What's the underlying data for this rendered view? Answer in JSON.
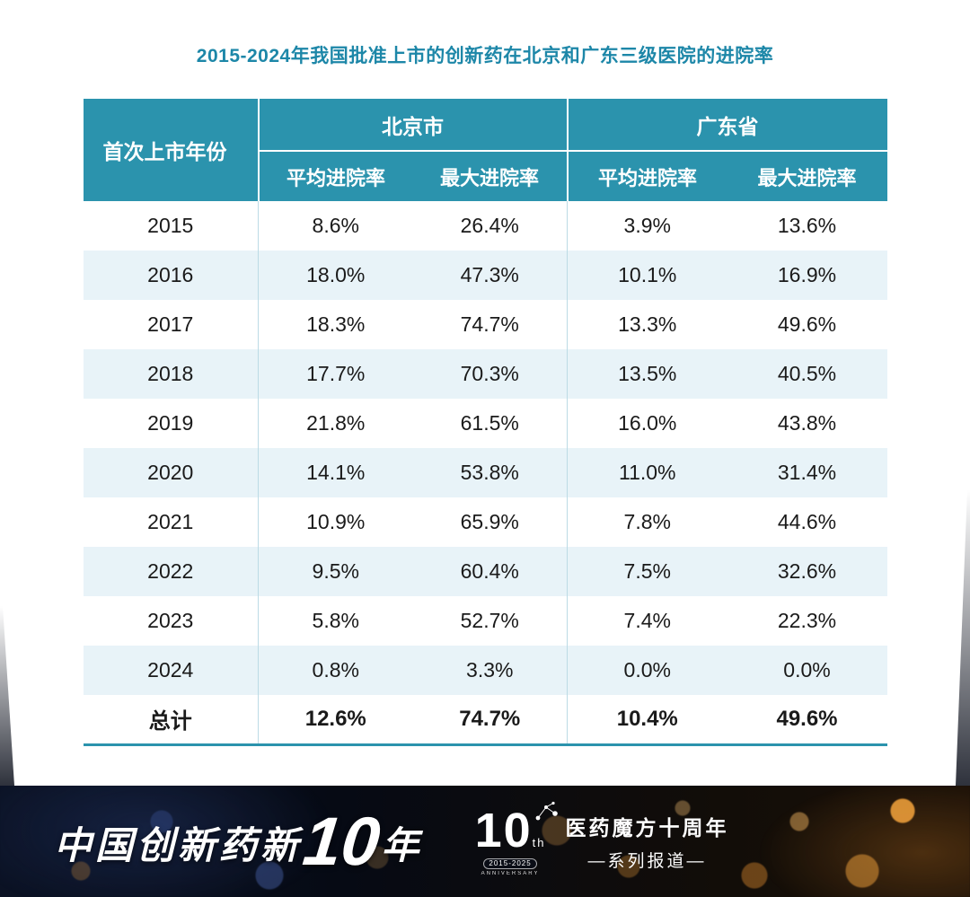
{
  "chart_data": {
    "type": "table",
    "title": "2015-2024年我国批准上市的创新药在北京和广东三级医院的进院率",
    "column_groups": [
      {
        "label": "",
        "columns": [
          "首次上市年份"
        ]
      },
      {
        "label": "北京市",
        "columns": [
          "平均进院率",
          "最大进院率"
        ]
      },
      {
        "label": "广东省",
        "columns": [
          "平均进院率",
          "最大进院率"
        ]
      }
    ],
    "rows": [
      [
        "2015",
        "8.6%",
        "26.4%",
        "3.9%",
        "13.6%"
      ],
      [
        "2016",
        "18.0%",
        "47.3%",
        "10.1%",
        "16.9%"
      ],
      [
        "2017",
        "18.3%",
        "74.7%",
        "13.3%",
        "49.6%"
      ],
      [
        "2018",
        "17.7%",
        "70.3%",
        "13.5%",
        "40.5%"
      ],
      [
        "2019",
        "21.8%",
        "61.5%",
        "16.0%",
        "43.8%"
      ],
      [
        "2020",
        "14.1%",
        "53.8%",
        "11.0%",
        "31.4%"
      ],
      [
        "2021",
        "10.9%",
        "65.9%",
        "7.8%",
        "44.6%"
      ],
      [
        "2022",
        "9.5%",
        "60.4%",
        "7.5%",
        "32.6%"
      ],
      [
        "2023",
        "5.8%",
        "52.7%",
        "7.4%",
        "22.3%"
      ],
      [
        "2024",
        "0.8%",
        "3.3%",
        "0.0%",
        "0.0%"
      ],
      [
        "总计",
        "12.6%",
        "74.7%",
        "10.4%",
        "49.6%"
      ]
    ],
    "total_row_label": "总计",
    "layout": {
      "grid": "alternating-row-shading",
      "legend": "none"
    }
  },
  "footer": {
    "brand_prefix": "中国创新药新",
    "brand_number": "10",
    "brand_suffix": "年",
    "logo_number": "10",
    "logo_sub": "th",
    "logo_years": "2015-2025",
    "logo_caption": "ANNIVERSARY",
    "series_line1": "医药魔方十周年",
    "series_line2": "—系列报道—"
  },
  "colors": {
    "header_teal": "#2B93AD",
    "title_teal": "#1D87A8",
    "row_alt_blue": "#E8F3F8",
    "divider_teal": "#BCDBE5",
    "footer_background": "#0A0E1A",
    "bokeh_orange": "#F5A43C",
    "bokeh_blue": "#4E6CB4",
    "text_dark": "#1A1A1A",
    "text_white": "#FFFFFF"
  }
}
